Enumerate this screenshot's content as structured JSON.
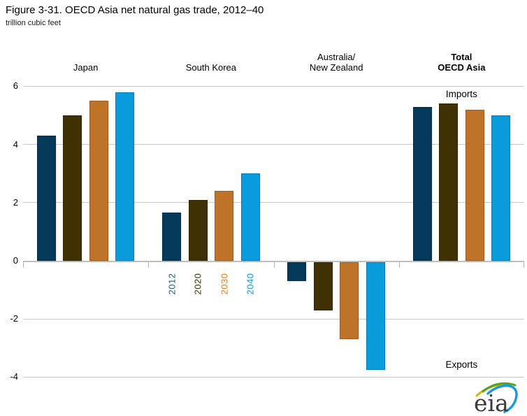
{
  "header": {
    "title": "Figure 3-31. OECD Asia net natural gas trade, 2012–40",
    "subtitle": "trillion cubic feet"
  },
  "chart_data": {
    "type": "bar",
    "title": "Figure 3-31. OECD Asia net natural gas trade, 2012–40",
    "ylabel": "trillion cubic feet",
    "categories": [
      "Japan",
      "South Korea",
      "Australia/New Zealand",
      "Total OECD Asia"
    ],
    "category_label_lines": [
      [
        "Japan"
      ],
      [
        "South Korea"
      ],
      [
        "Australia/",
        "New Zealand"
      ],
      [
        "Total",
        "OECD Asia"
      ]
    ],
    "category_bold": [
      false,
      false,
      false,
      true
    ],
    "series": [
      {
        "name": "2012",
        "color": "#05395A",
        "label_color": "#1D5B7E",
        "values": [
          4.3,
          1.65,
          -0.7,
          5.3
        ]
      },
      {
        "name": "2020",
        "color": "#3F3103",
        "label_color": "#3F3103",
        "values": [
          5.0,
          2.1,
          -1.7,
          5.4
        ]
      },
      {
        "name": "2030",
        "color": "#BE7328",
        "label_color": "#DD7D19",
        "values": [
          5.5,
          2.4,
          -2.7,
          5.2
        ]
      },
      {
        "name": "2040",
        "color": "#0A9BDC",
        "label_color": "#0A9BDC",
        "values": [
          5.8,
          3.0,
          -3.75,
          5.0
        ]
      }
    ],
    "ylim": [
      -4,
      6
    ],
    "yticks": [
      6,
      4,
      2,
      0,
      -2,
      -4
    ],
    "grid": true,
    "legend_position": "rotated year labels under South Korea group",
    "annotations": [
      {
        "text": "Imports",
        "group_index": 3,
        "position": "top"
      },
      {
        "text": "Exports",
        "group_index": 3,
        "position": "bottom"
      }
    ]
  },
  "logo": {
    "text": "eia",
    "swoosh_colors": {
      "yellow": "#D9B410",
      "green": "#55A41D",
      "blue": "#1C9AD6"
    },
    "text_color": "#3B3B3B"
  }
}
